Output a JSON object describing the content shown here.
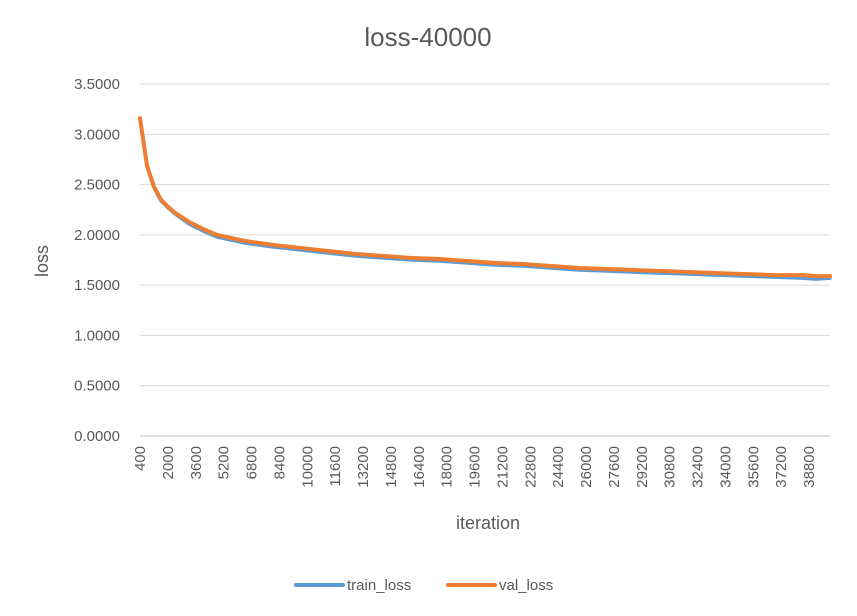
{
  "chart_data": {
    "type": "line",
    "title": "loss-40000",
    "xlabel": "iteration",
    "ylabel": "loss",
    "ylim": [
      0,
      3.5
    ],
    "y_ticks": [
      "0.0000",
      "0.5000",
      "1.0000",
      "1.5000",
      "2.0000",
      "2.5000",
      "3.0000",
      "3.5000"
    ],
    "x_tick_labels": [
      "400",
      "2000",
      "3600",
      "5200",
      "6800",
      "8400",
      "10000",
      "11600",
      "13200",
      "14800",
      "16400",
      "18000",
      "19600",
      "21200",
      "22800",
      "24400",
      "26000",
      "27600",
      "29200",
      "30800",
      "32400",
      "34000",
      "35600",
      "37200",
      "38800"
    ],
    "x_range": [
      400,
      40000
    ],
    "grid": "horizontal",
    "legend_position": "bottom",
    "colors": {
      "train_loss": "#5b9bd5",
      "val_loss": "#ed7d31"
    },
    "series": [
      {
        "name": "train_loss",
        "x": [
          400,
          800,
          1200,
          1600,
          2000,
          2400,
          3200,
          4000,
          4800,
          5600,
          6400,
          7200,
          8000,
          9600,
          11200,
          12800,
          14400,
          16000,
          17600,
          19200,
          20800,
          22400,
          24000,
          25600,
          27200,
          28800,
          30400,
          32000,
          33600,
          35200,
          36800,
          38400,
          39200,
          40000
        ],
        "y": [
          3.16,
          2.68,
          2.47,
          2.34,
          2.27,
          2.21,
          2.11,
          2.04,
          1.98,
          1.95,
          1.92,
          1.9,
          1.88,
          1.85,
          1.82,
          1.79,
          1.77,
          1.75,
          1.74,
          1.72,
          1.7,
          1.69,
          1.67,
          1.65,
          1.64,
          1.63,
          1.62,
          1.61,
          1.6,
          1.59,
          1.58,
          1.57,
          1.56,
          1.57
        ]
      },
      {
        "name": "val_loss",
        "x": [
          400,
          800,
          1200,
          1600,
          2000,
          2400,
          3200,
          4000,
          4800,
          5600,
          6400,
          7200,
          8000,
          9600,
          11200,
          12800,
          14400,
          16000,
          17600,
          19200,
          20800,
          22400,
          24000,
          25600,
          27200,
          28800,
          30400,
          32000,
          33600,
          35200,
          36800,
          38400,
          39200,
          40000
        ],
        "y": [
          3.16,
          2.69,
          2.48,
          2.35,
          2.28,
          2.22,
          2.13,
          2.06,
          2.0,
          1.97,
          1.94,
          1.92,
          1.9,
          1.87,
          1.84,
          1.81,
          1.79,
          1.77,
          1.76,
          1.74,
          1.72,
          1.71,
          1.69,
          1.67,
          1.66,
          1.65,
          1.64,
          1.63,
          1.62,
          1.61,
          1.6,
          1.6,
          1.59,
          1.59
        ]
      }
    ]
  }
}
